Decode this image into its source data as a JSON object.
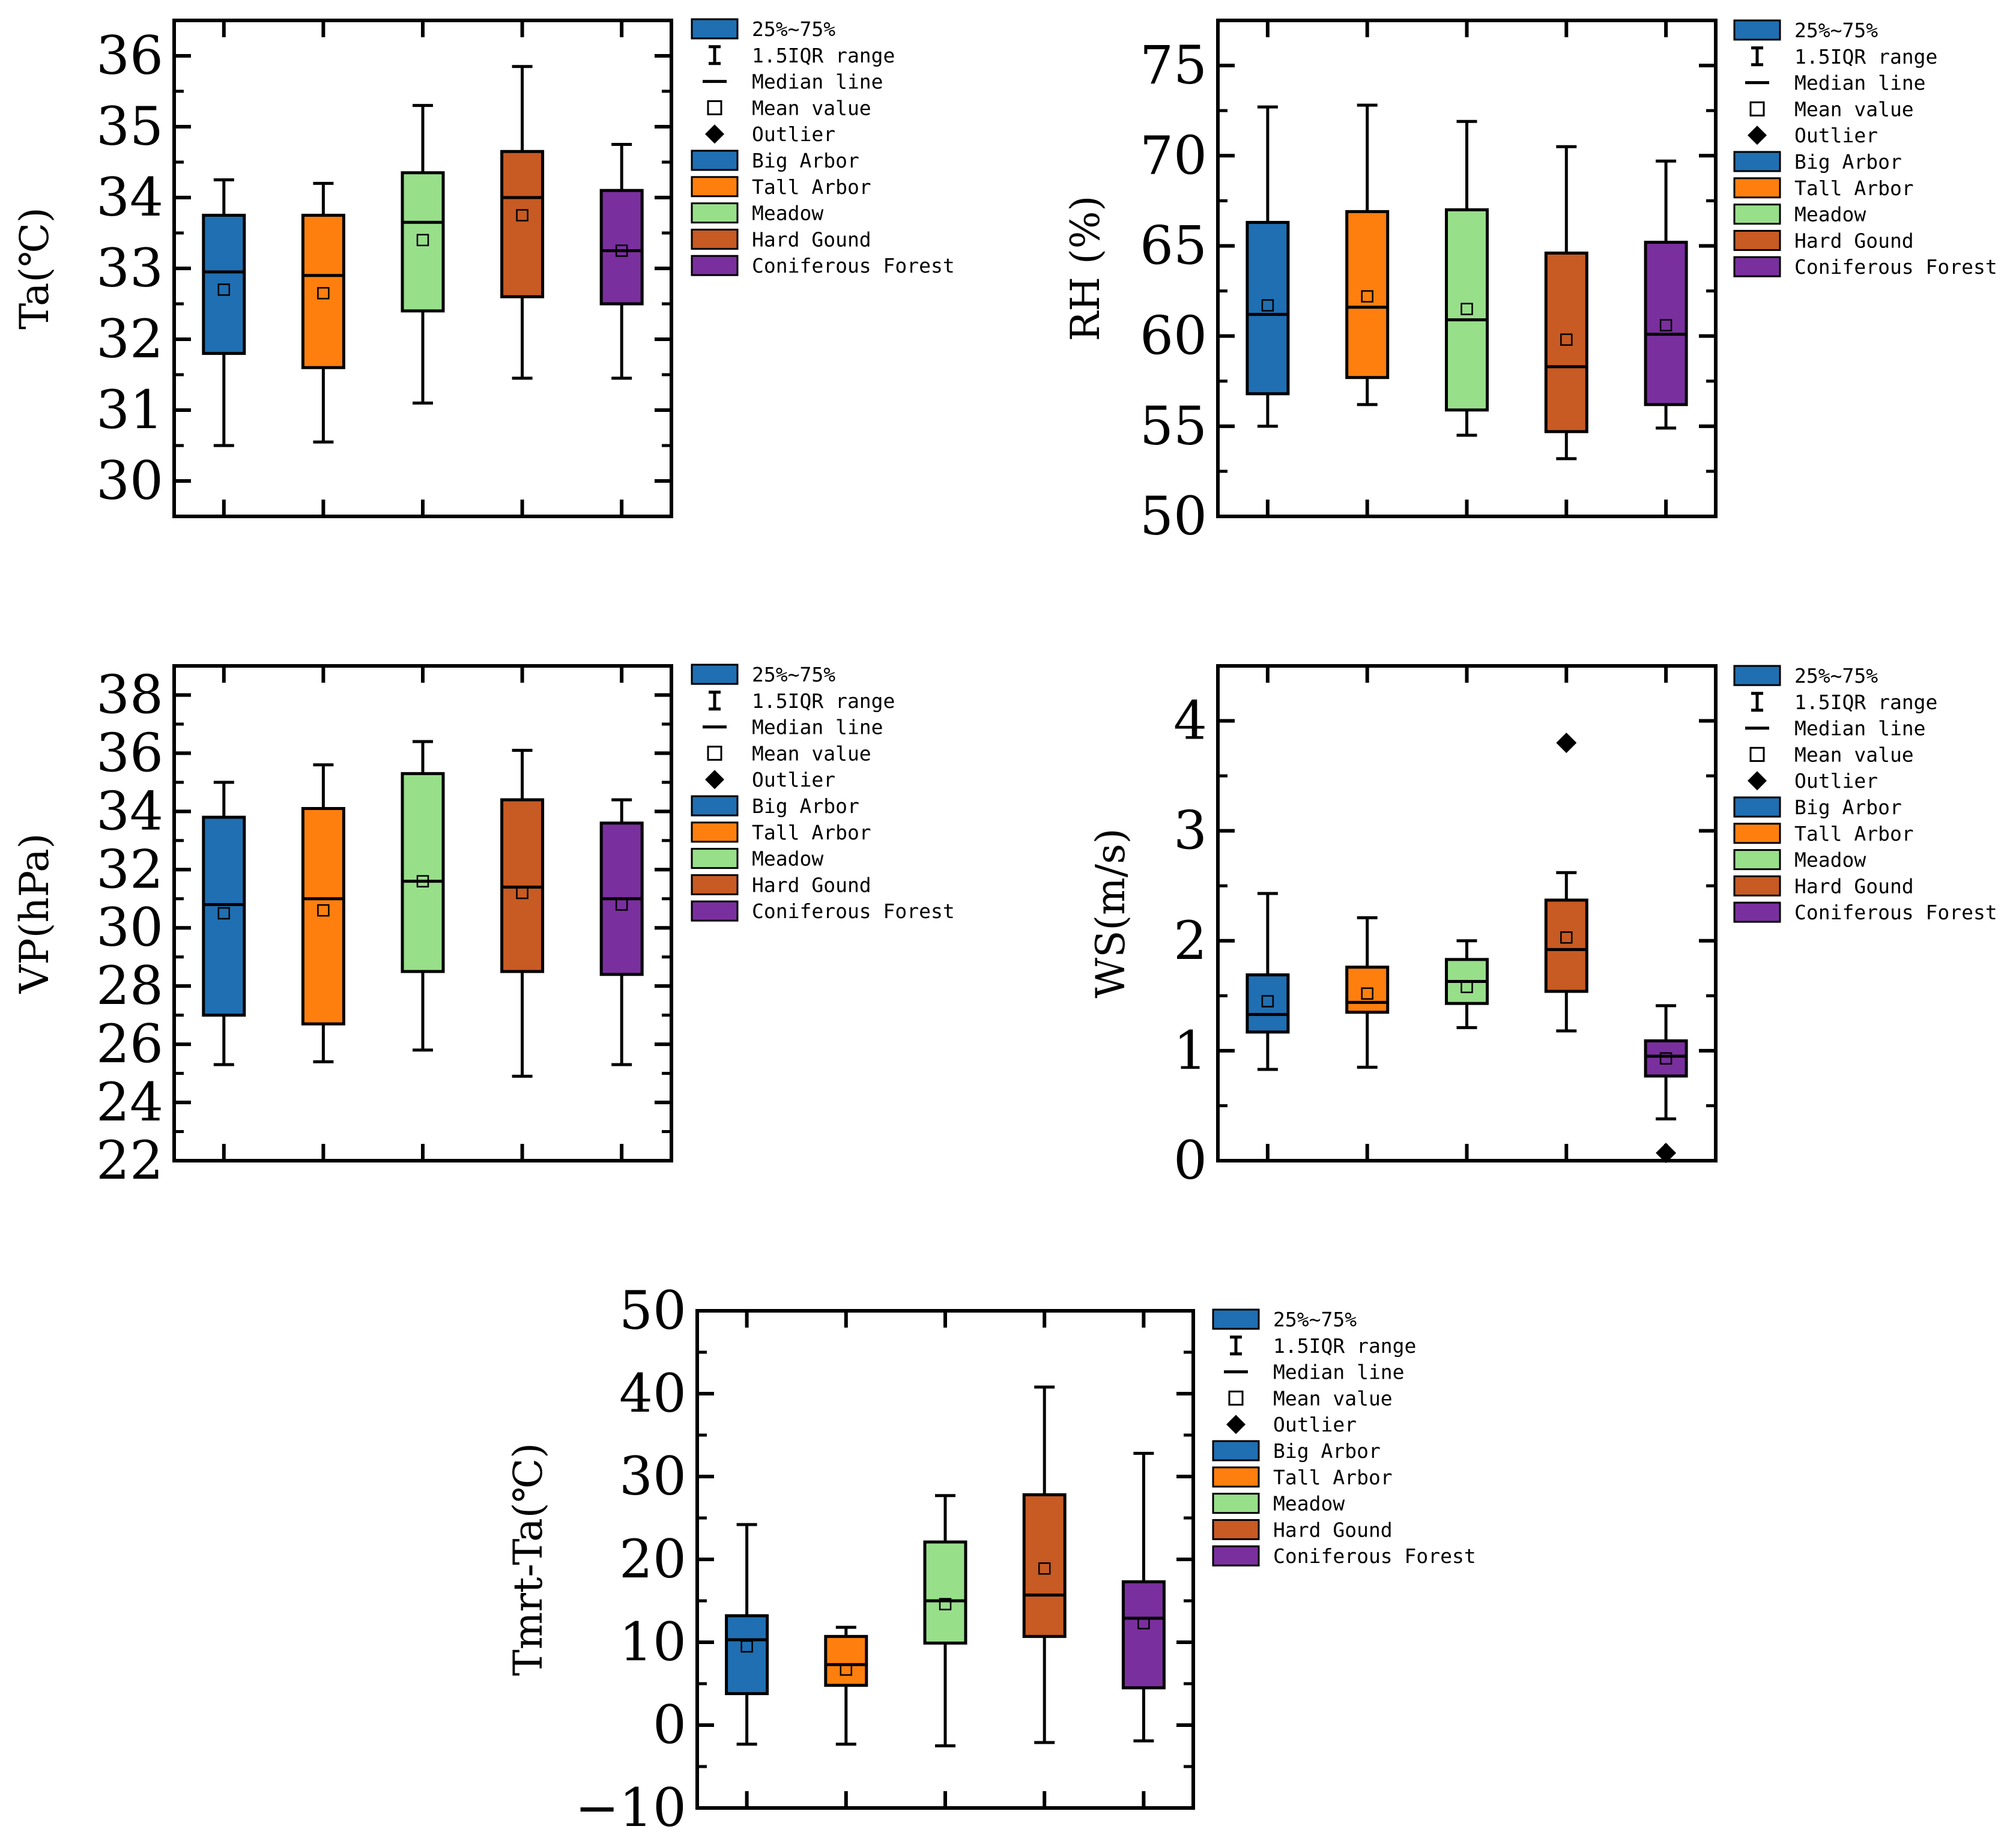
{
  "figure_title": "",
  "chart_data": [
    {
      "type": "boxplot",
      "title": "",
      "xlabel": "",
      "ylabel": "Ta(℃)",
      "ylim": [
        29.5,
        36.5
      ],
      "yticks": [
        30,
        31,
        32,
        33,
        34,
        35,
        36
      ],
      "categories": [
        "Big Arbor",
        "Tall Arbor",
        "Meadow",
        "Hard Gound",
        "Coniferous Forest"
      ],
      "boxes": [
        {
          "whisker_low": 30.5,
          "q1": 31.8,
          "median": 32.95,
          "q3": 33.75,
          "whisker_high": 34.25,
          "mean": 32.7
        },
        {
          "whisker_low": 30.55,
          "q1": 31.6,
          "median": 32.9,
          "q3": 33.75,
          "whisker_high": 34.2,
          "mean": 32.65
        },
        {
          "whisker_low": 31.1,
          "q1": 32.4,
          "median": 33.65,
          "q3": 34.35,
          "whisker_high": 35.3,
          "mean": 33.4
        },
        {
          "whisker_low": 31.45,
          "q1": 32.6,
          "median": 34.0,
          "q3": 34.65,
          "whisker_high": 35.85,
          "mean": 33.75
        },
        {
          "whisker_low": 31.45,
          "q1": 32.5,
          "median": 33.25,
          "q3": 34.1,
          "whisker_high": 34.75,
          "mean": 33.25
        }
      ],
      "outliers": [
        [],
        [],
        [],
        [],
        []
      ]
    },
    {
      "type": "boxplot",
      "title": "",
      "xlabel": "",
      "ylabel": "RH (%)",
      "ylim": [
        50,
        77.5
      ],
      "yticks": [
        50,
        55,
        60,
        65,
        70,
        75
      ],
      "categories": [
        "Big Arbor",
        "Tall Arbor",
        "Meadow",
        "Hard Gound",
        "Coniferous Forest"
      ],
      "boxes": [
        {
          "whisker_low": 55.0,
          "q1": 56.8,
          "median": 61.2,
          "q3": 66.3,
          "whisker_high": 72.7,
          "mean": 61.7
        },
        {
          "whisker_low": 56.2,
          "q1": 57.7,
          "median": 61.6,
          "q3": 66.9,
          "whisker_high": 72.8,
          "mean": 62.2
        },
        {
          "whisker_low": 54.5,
          "q1": 55.9,
          "median": 60.9,
          "q3": 67.0,
          "whisker_high": 71.9,
          "mean": 61.5
        },
        {
          "whisker_low": 53.2,
          "q1": 54.7,
          "median": 58.3,
          "q3": 64.6,
          "whisker_high": 70.5,
          "mean": 59.8
        },
        {
          "whisker_low": 54.9,
          "q1": 56.2,
          "median": 60.1,
          "q3": 65.2,
          "whisker_high": 69.7,
          "mean": 60.6
        }
      ],
      "outliers": [
        [],
        [],
        [],
        [],
        []
      ]
    },
    {
      "type": "boxplot",
      "title": "",
      "xlabel": "",
      "ylabel": "VP(hPa)",
      "ylim": [
        22,
        39
      ],
      "yticks": [
        22,
        24,
        26,
        28,
        30,
        32,
        34,
        36,
        38
      ],
      "categories": [
        "Big Arbor",
        "Tall Arbor",
        "Meadow",
        "Hard Gound",
        "Coniferous Forest"
      ],
      "boxes": [
        {
          "whisker_low": 25.3,
          "q1": 27.0,
          "median": 30.8,
          "q3": 33.8,
          "whisker_high": 35.0,
          "mean": 30.5
        },
        {
          "whisker_low": 25.4,
          "q1": 26.7,
          "median": 31.0,
          "q3": 34.1,
          "whisker_high": 35.6,
          "mean": 30.6
        },
        {
          "whisker_low": 25.8,
          "q1": 28.5,
          "median": 31.6,
          "q3": 35.3,
          "whisker_high": 36.4,
          "mean": 31.6
        },
        {
          "whisker_low": 24.9,
          "q1": 28.5,
          "median": 31.4,
          "q3": 34.4,
          "whisker_high": 36.1,
          "mean": 31.2
        },
        {
          "whisker_low": 25.3,
          "q1": 28.4,
          "median": 31.0,
          "q3": 33.6,
          "whisker_high": 34.4,
          "mean": 30.8
        }
      ],
      "outliers": [
        [],
        [],
        [],
        [],
        []
      ]
    },
    {
      "type": "boxplot",
      "title": "",
      "xlabel": "",
      "ylabel": "WS(m/s)",
      "ylim": [
        0,
        4.5
      ],
      "yticks": [
        0,
        1,
        2,
        3,
        4
      ],
      "categories": [
        "Big Arbor",
        "Tall Arbor",
        "Meadow",
        "Hard Gound",
        "Coniferous Forest"
      ],
      "boxes": [
        {
          "whisker_low": 0.83,
          "q1": 1.17,
          "median": 1.33,
          "q3": 1.69,
          "whisker_high": 2.43,
          "mean": 1.45
        },
        {
          "whisker_low": 0.85,
          "q1": 1.35,
          "median": 1.44,
          "q3": 1.76,
          "whisker_high": 2.21,
          "mean": 1.52
        },
        {
          "whisker_low": 1.21,
          "q1": 1.43,
          "median": 1.63,
          "q3": 1.83,
          "whisker_high": 2.0,
          "mean": 1.58
        },
        {
          "whisker_low": 1.18,
          "q1": 1.54,
          "median": 1.92,
          "q3": 2.37,
          "whisker_high": 2.62,
          "mean": 2.03
        },
        {
          "whisker_low": 0.38,
          "q1": 0.77,
          "median": 0.95,
          "q3": 1.09,
          "whisker_high": 1.41,
          "mean": 0.93
        }
      ],
      "outliers": [
        [],
        [],
        [],
        [
          3.8
        ],
        [
          0.07
        ]
      ]
    },
    {
      "type": "boxplot",
      "title": "",
      "xlabel": "",
      "ylabel": "Tmrt-Ta(℃)",
      "ylim": [
        -10,
        50
      ],
      "yticks": [
        -10,
        0,
        10,
        20,
        30,
        40,
        50
      ],
      "ytick_labels": [
        "−10",
        "0",
        "10",
        "20",
        "30",
        "40",
        "50"
      ],
      "categories": [
        "Big Arbor",
        "Tall Arbor",
        "Meadow",
        "Hard Gound",
        "Coniferous Forest"
      ],
      "boxes": [
        {
          "whisker_low": -2.3,
          "q1": 3.8,
          "median": 10.3,
          "q3": 13.2,
          "whisker_high": 24.2,
          "mean": 9.5
        },
        {
          "whisker_low": -2.3,
          "q1": 4.8,
          "median": 7.3,
          "q3": 10.7,
          "whisker_high": 11.8,
          "mean": 6.7
        },
        {
          "whisker_low": -2.5,
          "q1": 9.9,
          "median": 15.0,
          "q3": 22.1,
          "whisker_high": 27.7,
          "mean": 14.6
        },
        {
          "whisker_low": -2.1,
          "q1": 10.7,
          "median": 15.7,
          "q3": 27.8,
          "whisker_high": 40.8,
          "mean": 18.9
        },
        {
          "whisker_low": -1.9,
          "q1": 4.5,
          "median": 12.9,
          "q3": 17.3,
          "whisker_high": 32.8,
          "mean": 12.3
        }
      ],
      "outliers": [
        [],
        [],
        [],
        [],
        []
      ]
    }
  ],
  "legend": {
    "entries": [
      {
        "label": "25%~75%",
        "kind": "box",
        "color": "#1f6fb2"
      },
      {
        "label": "1.5IQR range",
        "kind": "whisker"
      },
      {
        "label": "Median line",
        "kind": "line"
      },
      {
        "label": "Mean value",
        "kind": "square"
      },
      {
        "label": "Outlier",
        "kind": "diamond"
      },
      {
        "label": "Big Arbor",
        "kind": "box",
        "color": "#1f6fb2"
      },
      {
        "label": "Tall Arbor",
        "kind": "box",
        "color": "#ff7f0e"
      },
      {
        "label": "Meadow",
        "kind": "box",
        "color": "#98df8a"
      },
      {
        "label": "Hard Gound",
        "kind": "box",
        "color": "#c85a23"
      },
      {
        "label": "Coniferous Forest",
        "kind": "box",
        "color": "#7a2f9e"
      }
    ]
  },
  "colors": [
    "#1f6fb2",
    "#ff7f0e",
    "#98df8a",
    "#c85a23",
    "#7a2f9e"
  ]
}
